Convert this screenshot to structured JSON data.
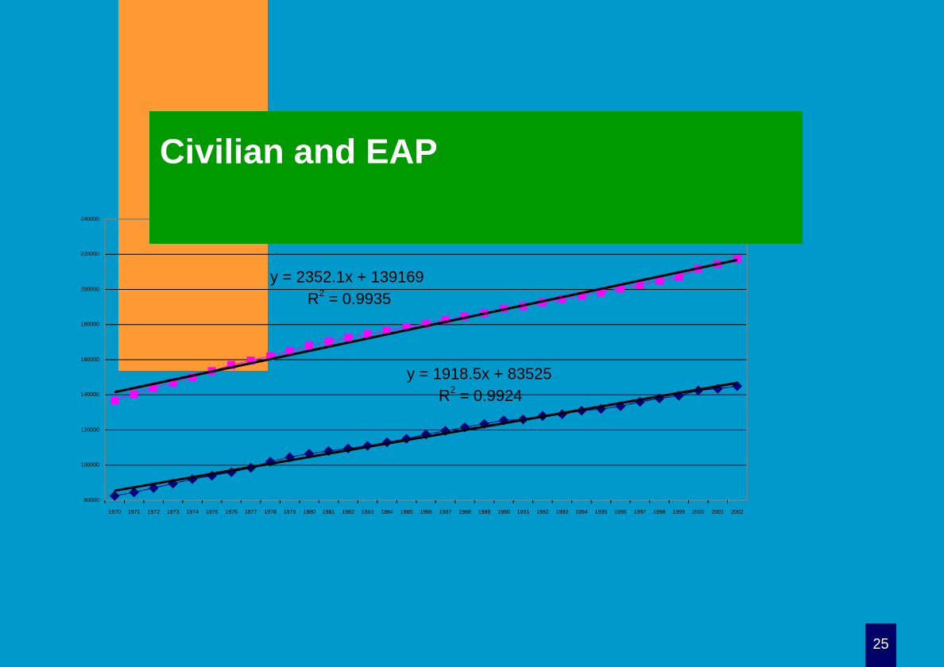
{
  "slide": {
    "title": "Civilian and EAP",
    "page_number": "25"
  },
  "chart_data": {
    "type": "line",
    "categories": [
      "1970",
      "1971",
      "1972",
      "1973",
      "1974",
      "1975",
      "1976",
      "1977",
      "1978",
      "1979",
      "1980",
      "1981",
      "1982",
      "1983",
      "1984",
      "1985",
      "1986",
      "1987",
      "1988",
      "1989",
      "1990",
      "1991",
      "1992",
      "1993",
      "1994",
      "1995",
      "1996",
      "1997",
      "1998",
      "1999",
      "2000",
      "2001",
      "2002"
    ],
    "series": [
      {
        "color": "#ff00ff",
        "marker": "square",
        "values": [
          137000,
          140500,
          144000,
          147000,
          150000,
          153500,
          157000,
          159500,
          162000,
          165000,
          168000,
          170500,
          172500,
          174500,
          176500,
          178500,
          180500,
          182500,
          184500,
          186500,
          189000,
          190500,
          192500,
          194500,
          196500,
          198500,
          200500,
          202500,
          205000,
          207000,
          212000,
          214500,
          217500
        ]
      },
      {
        "color": "#000080",
        "marker": "diamond",
        "values": [
          82500,
          84500,
          87000,
          89500,
          92000,
          94000,
          96000,
          98500,
          102000,
          104500,
          106500,
          108000,
          109500,
          111000,
          113000,
          115000,
          117500,
          119500,
          121500,
          123500,
          125500,
          126000,
          128000,
          129000,
          131000,
          132000,
          133500,
          136000,
          138000,
          139500,
          142500,
          143500,
          145000
        ]
      }
    ],
    "trendlines": [
      {
        "slope": 2352.1,
        "intercept": 139169,
        "color": "#000000",
        "equation": "y = 2352.1x + 139169",
        "r2_base": "R",
        "r2_power": "2",
        "r2_rest": " = 0.9935"
      },
      {
        "slope": 1918.5,
        "intercept": 83525,
        "color": "#000000",
        "equation": "y = 1918.5x + 83525",
        "r2_base": "R",
        "r2_power": "2",
        "r2_rest": " = 0.9924"
      }
    ],
    "ylim": [
      80000,
      240000
    ],
    "yticks": [
      80000,
      100000,
      120000,
      140000,
      160000,
      180000,
      200000,
      220000,
      240000
    ],
    "grid": true
  }
}
